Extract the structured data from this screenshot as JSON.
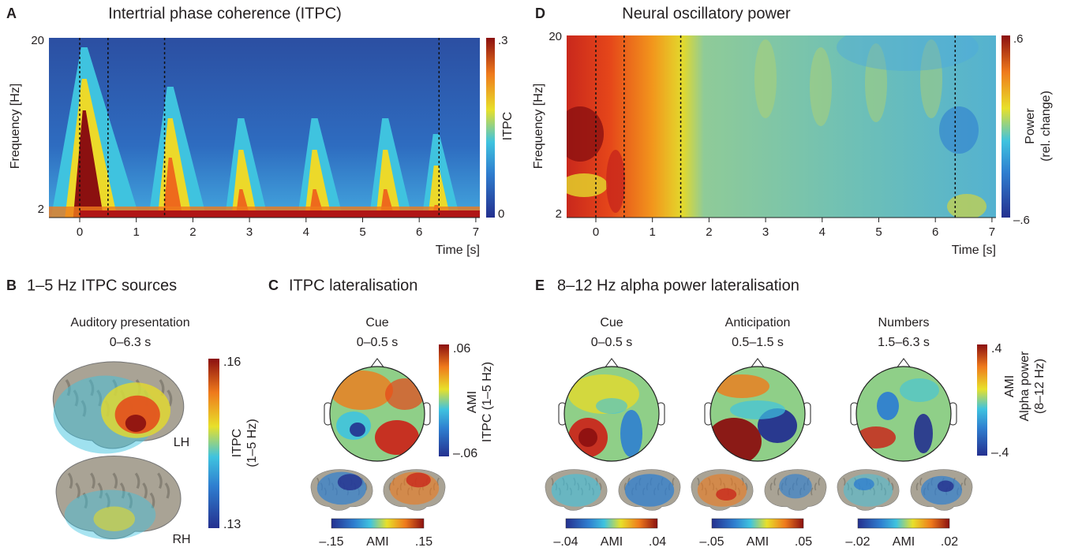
{
  "panels": [
    {
      "label": "A",
      "title": "Intertrial phase coherence (ITPC)",
      "y_axis_label": "Frequency [Hz]",
      "y_ticks": [
        "20",
        "2"
      ],
      "x_ticks": [
        "0",
        "1",
        "2",
        "3",
        "4",
        "5",
        "6",
        "7"
      ],
      "x_axis_label": "Time [s]",
      "colorbar": {
        "max": ".3",
        "min": "0",
        "label": [
          "ITPC"
        ]
      }
    },
    {
      "label": "D",
      "title": "Neural oscillatory power",
      "y_axis_label": "Frequency [Hz]",
      "y_ticks": [
        "20",
        "2"
      ],
      "x_ticks": [
        "0",
        "1",
        "2",
        "3",
        "4",
        "5",
        "6",
        "7"
      ],
      "x_axis_label": "Time [s]",
      "colorbar": {
        "max": ".6",
        "min": "–.6",
        "label": [
          "Power",
          "(rel. change)"
        ]
      }
    },
    {
      "label": "B",
      "title": "1–5 Hz ITPC sources",
      "condition": "Auditory presentation",
      "window": "0–6.3 s",
      "hemispheres": [
        "LH",
        "RH"
      ],
      "colorbar": {
        "max": ".16",
        "min": ".13",
        "label": [
          "ITPC",
          "(1–5 Hz)"
        ]
      }
    },
    {
      "label": "C",
      "title": "ITPC lateralisation",
      "maps": [
        {
          "condition": "Cue",
          "window": "0–0.5 s",
          "brain_colorbar": [
            "–.15",
            "AMI",
            ".15"
          ]
        }
      ],
      "colorbar": {
        "max": ".06",
        "min": "–.06",
        "label": [
          "AMI",
          "ITPC (1–5 Hz)"
        ]
      }
    },
    {
      "label": "E",
      "title": "8–12 Hz alpha power lateralisation",
      "maps": [
        {
          "condition": "Cue",
          "window": "0–0.5 s",
          "brain_colorbar": [
            "–.04",
            "AMI",
            ".04"
          ]
        },
        {
          "condition": "Anticipation",
          "window": "0.5–1.5 s",
          "brain_colorbar": [
            "–.05",
            "AMI",
            ".05"
          ]
        },
        {
          "condition": "Numbers",
          "window": "1.5–6.3 s",
          "brain_colorbar": [
            "–.02",
            "AMI",
            ".02"
          ]
        }
      ],
      "colorbar": {
        "max": ".4",
        "min": "–.4",
        "label": [
          "AMI",
          "Alpha power",
          "(8–12 Hz)"
        ]
      }
    }
  ]
}
